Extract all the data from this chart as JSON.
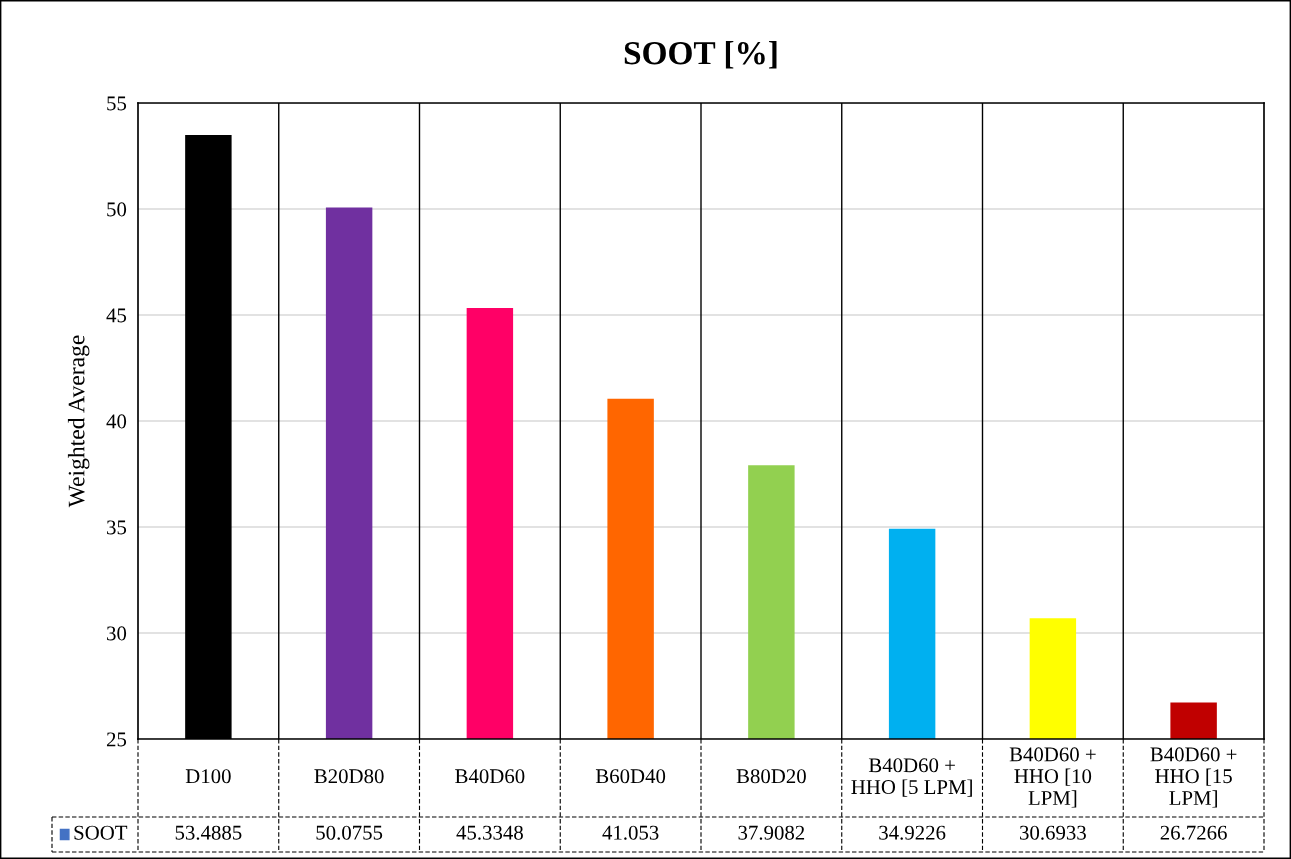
{
  "chart_data": {
    "type": "bar",
    "title": "SOOT [%]",
    "ylabel": "Weighted Average",
    "categories": [
      "D100",
      "B20D80",
      "B40D60",
      "B60D40",
      "B80D20",
      "B40D60 +\nHHO [5 LPM]",
      "B40D60 +\nHHO [10\nLPM]",
      "B40D60 +\nHHO [15\nLPM]"
    ],
    "series": [
      {
        "name": "SOOT",
        "color": "#4472c4",
        "colors": [
          "#000000",
          "#7030a0",
          "#ff0066",
          "#ff6600",
          "#92d050",
          "#00b0f0",
          "#ffff00",
          "#c00000"
        ],
        "values": [
          53.4885,
          50.0755,
          45.3348,
          41.053,
          37.9082,
          34.9226,
          30.6933,
          26.7266
        ]
      }
    ],
    "ylim": [
      25,
      55
    ],
    "yticks": [
      25,
      30,
      35,
      40,
      45,
      50,
      55
    ],
    "grid": true,
    "data_labels": true
  }
}
